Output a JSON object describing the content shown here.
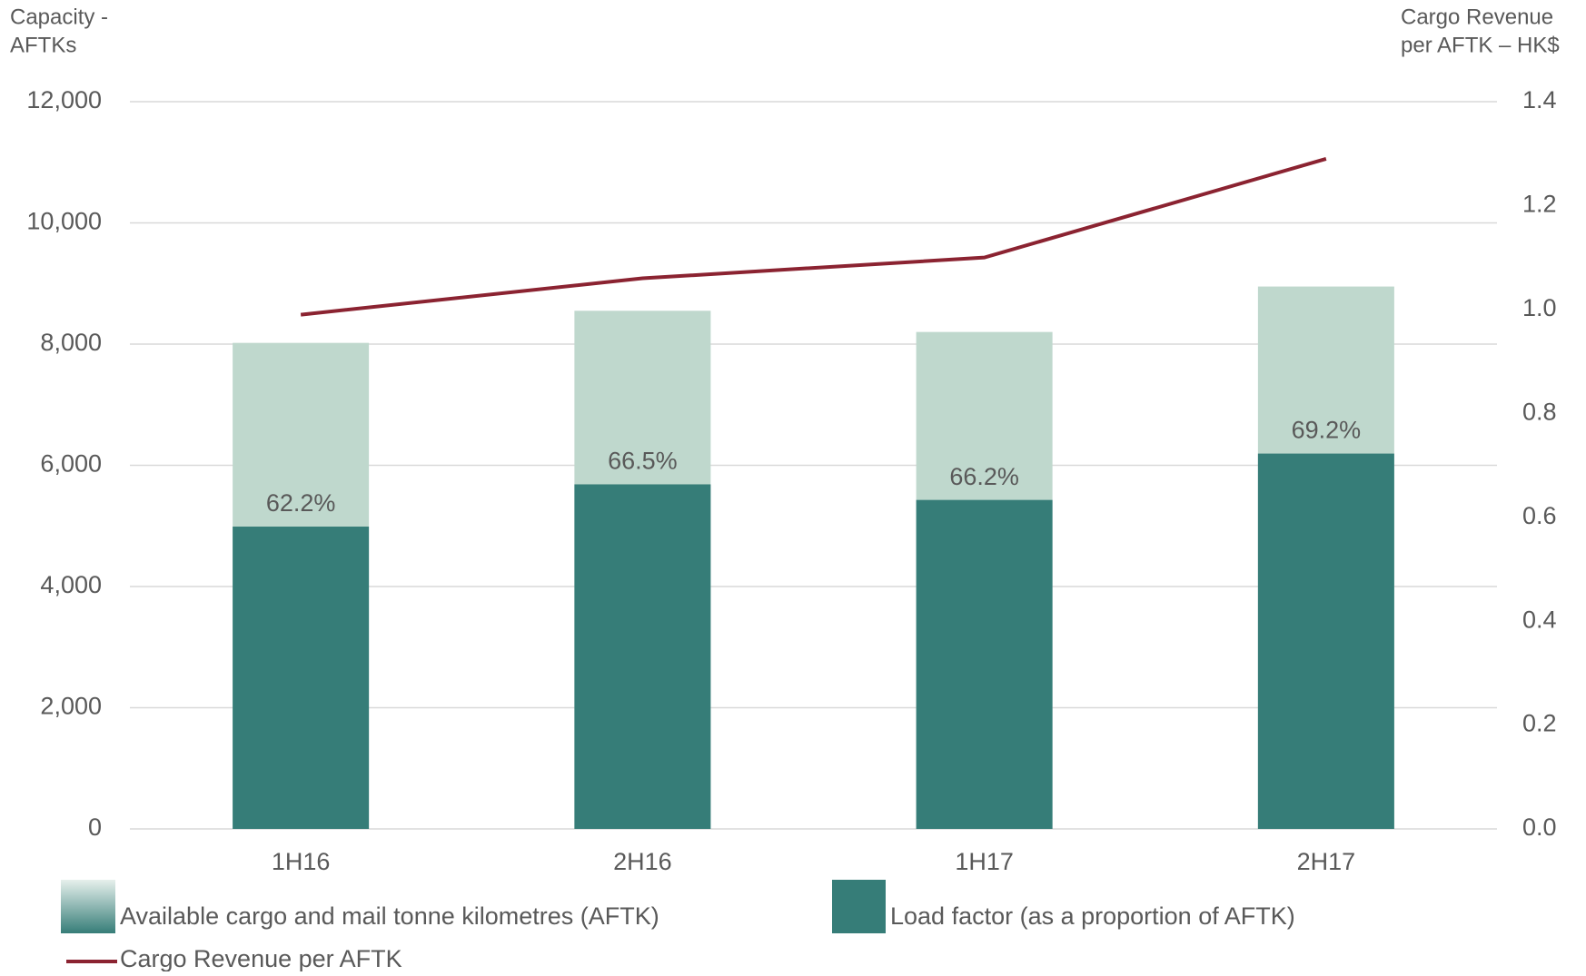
{
  "chart_data": {
    "type": "bar",
    "y_label": [
      "Capacity -",
      "AFTKs"
    ],
    "y2_label": [
      "Cargo Revenue",
      "per AFTK – HK$"
    ],
    "categories": [
      "1H16",
      "2H16",
      "1H17",
      "2H17"
    ],
    "series": [
      {
        "name": "Available cargo and mail tonne kilometres (AFTK)",
        "color": "#bfd8cd",
        "values": [
          8020,
          8550,
          8200,
          8950
        ]
      },
      {
        "name": "Load factor (as a proportion of AFTK)",
        "color": "#367d78",
        "values": [
          62.2,
          66.5,
          66.2,
          69.2
        ],
        "value_labels": [
          "62.2%",
          "66.5%",
          "66.2%",
          "69.2%"
        ]
      },
      {
        "name": "Cargo Revenue per AFTK",
        "type": "line",
        "axis": "y2",
        "color": "#8b2331",
        "values": [
          0.99,
          1.06,
          1.1,
          1.29
        ]
      }
    ],
    "ylim": [
      0,
      12000
    ],
    "yticks": [
      {
        "value": 0,
        "label": "0"
      },
      {
        "value": 2000,
        "label": "2,000"
      },
      {
        "value": 4000,
        "label": "4,000"
      },
      {
        "value": 6000,
        "label": "6,000"
      },
      {
        "value": 8000,
        "label": "8,000"
      },
      {
        "value": 10000,
        "label": "10,000"
      },
      {
        "value": 12000,
        "label": "12,000"
      }
    ],
    "y2lim": [
      0,
      1.4
    ],
    "y2ticks": [
      {
        "value": 0,
        "label": "0.0"
      },
      {
        "value": 0.2,
        "label": "0.2"
      },
      {
        "value": 0.4,
        "label": "0.4"
      },
      {
        "value": 0.6,
        "label": "0.6"
      },
      {
        "value": 0.8,
        "label": "0.8"
      },
      {
        "value": 1.0,
        "label": "1.0"
      },
      {
        "value": 1.2,
        "label": "1.2"
      },
      {
        "value": 1.4,
        "label": "1.4"
      }
    ],
    "grid": true
  }
}
